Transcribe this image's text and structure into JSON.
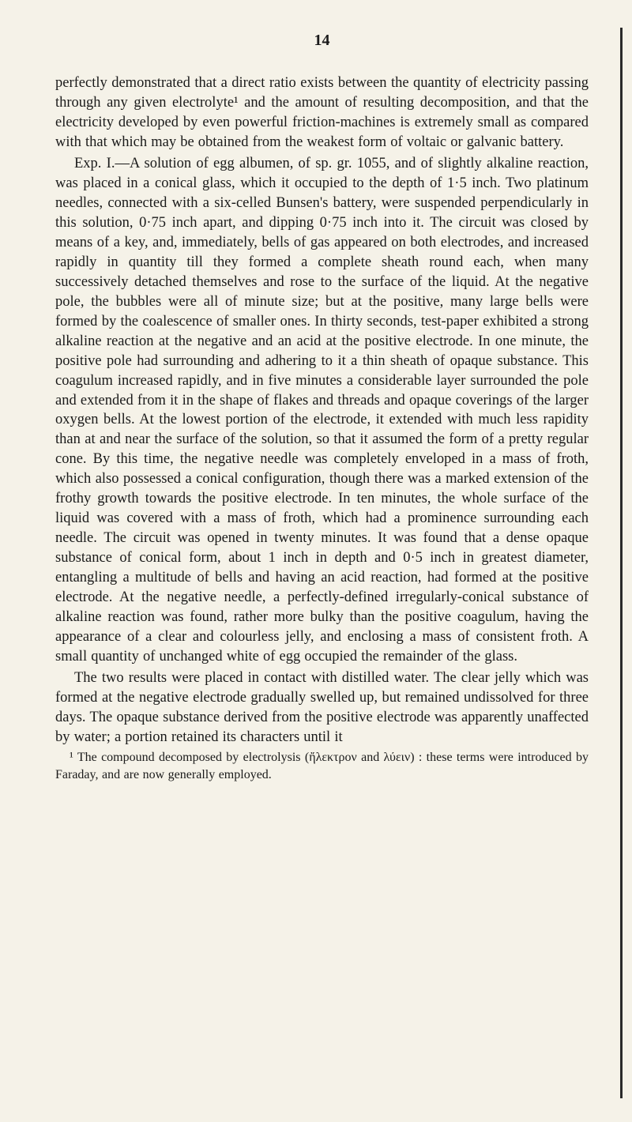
{
  "page_number": "14",
  "paragraphs": {
    "p1": "perfectly demonstrated that a direct ratio exists between the quantity of electricity passing through any given electrolyte¹ and the amount of resulting decomposition, and that the electricity developed by even powerful friction-machines is extremely small as compared with that which may be obtained from the weakest form of voltaic or galvanic battery.",
    "p2": "Exp. I.—A solution of egg albumen, of sp. gr. 1055, and of slightly alkaline reaction, was placed in a conical glass, which it occupied to the depth of 1·5 inch. Two platinum needles, connected with a six-celled Bunsen's battery, were suspended perpendicularly in this solution, 0·75 inch apart, and dipping 0·75 inch into it. The circuit was closed by means of a key, and, immediately, bells of gas appeared on both electrodes, and increased rapidly in quantity till they formed a complete sheath round each, when many successively detached themselves and rose to the surface of the liquid. At the negative pole, the bubbles were all of minute size; but at the positive, many large bells were formed by the coalescence of smaller ones. In thirty seconds, test-paper exhibited a strong alkaline reaction at the negative and an acid at the positive electrode. In one minute, the positive pole had surrounding and adhering to it a thin sheath of opaque substance. This coagulum increased rapidly, and in five minutes a considerable layer surrounded the pole and extended from it in the shape of flakes and threads and opaque coverings of the larger oxygen bells. At the lowest portion of the electrode, it extended with much less rapidity than at and near the surface of the solution, so that it assumed the form of a pretty regular cone. By this time, the negative needle was completely enveloped in a mass of froth, which also possessed a conical configuration, though there was a marked extension of the frothy growth towards the positive electrode. In ten minutes, the whole surface of the liquid was covered with a mass of froth, which had a prominence surrounding each needle. The circuit was opened in twenty minutes. It was found that a dense opaque substance of conical form, about 1 inch in depth and 0·5 inch in greatest diameter, entangling a multitude of bells and having an acid reaction, had formed at the positive electrode. At the negative needle, a perfectly-defined irregularly-conical substance of alkaline reaction was found, rather more bulky than the positive coagulum, having the appearance of a clear and colourless jelly, and enclosing a mass of consistent froth. A small quantity of unchanged white of egg occupied the remainder of the glass.",
    "p3": "The two results were placed in contact with distilled water. The clear jelly which was formed at the negative electrode gradually swelled up, but remained undissolved for three days. The opaque substance derived from the positive electrode was apparently unaffected by water; a portion retained its characters until it",
    "footnote": "¹ The compound decomposed by electrolysis (ἤλεκτρον and λύειν) : these terms were introduced by Faraday, and are now generally employed."
  },
  "colors": {
    "background": "#f5f2e8",
    "text": "#1a1a1a",
    "bar": "#2a2a2a"
  },
  "typography": {
    "body_fontsize": 18.5,
    "body_lineheight": 1.35,
    "pagenum_fontsize": 20,
    "footnote_fontsize": 16
  }
}
